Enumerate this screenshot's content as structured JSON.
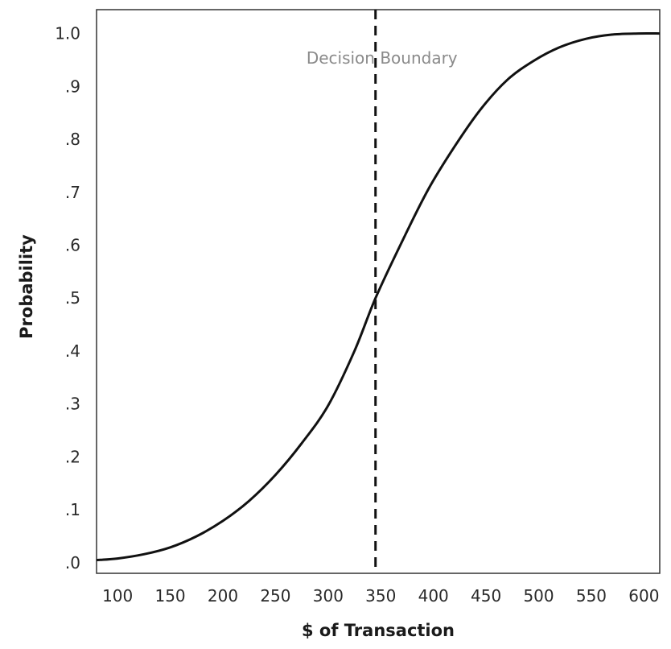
{
  "chart_data": {
    "type": "line",
    "title": "",
    "xlabel": "$ of Transaction",
    "ylabel": "Probability",
    "xlim": [
      80,
      615
    ],
    "ylim": [
      -0.02,
      1.045
    ],
    "x_ticks": [
      {
        "value": 100,
        "label": "100"
      },
      {
        "value": 150,
        "label": "150"
      },
      {
        "value": 200,
        "label": "200"
      },
      {
        "value": 250,
        "label": "250"
      },
      {
        "value": 300,
        "label": "300"
      },
      {
        "value": 350,
        "label": "350"
      },
      {
        "value": 400,
        "label": "400"
      },
      {
        "value": 450,
        "label": "450"
      },
      {
        "value": 500,
        "label": "500"
      },
      {
        "value": 550,
        "label": "550"
      },
      {
        "value": 600,
        "label": "600"
      }
    ],
    "y_ticks": [
      {
        "value": 0.0,
        "label": ".0"
      },
      {
        "value": 0.1,
        "label": ".1"
      },
      {
        "value": 0.2,
        "label": ".2"
      },
      {
        "value": 0.3,
        "label": ".3"
      },
      {
        "value": 0.4,
        "label": ".4"
      },
      {
        "value": 0.5,
        "label": ".5"
      },
      {
        "value": 0.6,
        "label": ".6"
      },
      {
        "value": 0.7,
        "label": ".7"
      },
      {
        "value": 0.8,
        "label": ".8"
      },
      {
        "value": 0.9,
        "label": ".9"
      },
      {
        "value": 1.0,
        "label": "1.0"
      }
    ],
    "grid": false,
    "legend": "none",
    "series": [
      {
        "x": [
          80,
          100,
          125,
          150,
          175,
          200,
          225,
          250,
          275,
          300,
          325,
          345,
          370,
          395,
          420,
          445,
          470,
          495,
          520,
          545,
          570,
          595,
          615
        ],
        "y": [
          0.005,
          0.008,
          0.016,
          0.029,
          0.05,
          0.079,
          0.117,
          0.166,
          0.226,
          0.297,
          0.4,
          0.5,
          0.606,
          0.705,
          0.786,
          0.857,
          0.912,
          0.948,
          0.974,
          0.99,
          0.998,
          1.0,
          1.0
        ],
        "color": "#111111"
      }
    ],
    "annotations": [
      {
        "type": "vline",
        "x": 345,
        "style": "dashed",
        "color": "#111111",
        "label": "Decision Boundary",
        "label_color": "#8a8a8a"
      }
    ]
  }
}
